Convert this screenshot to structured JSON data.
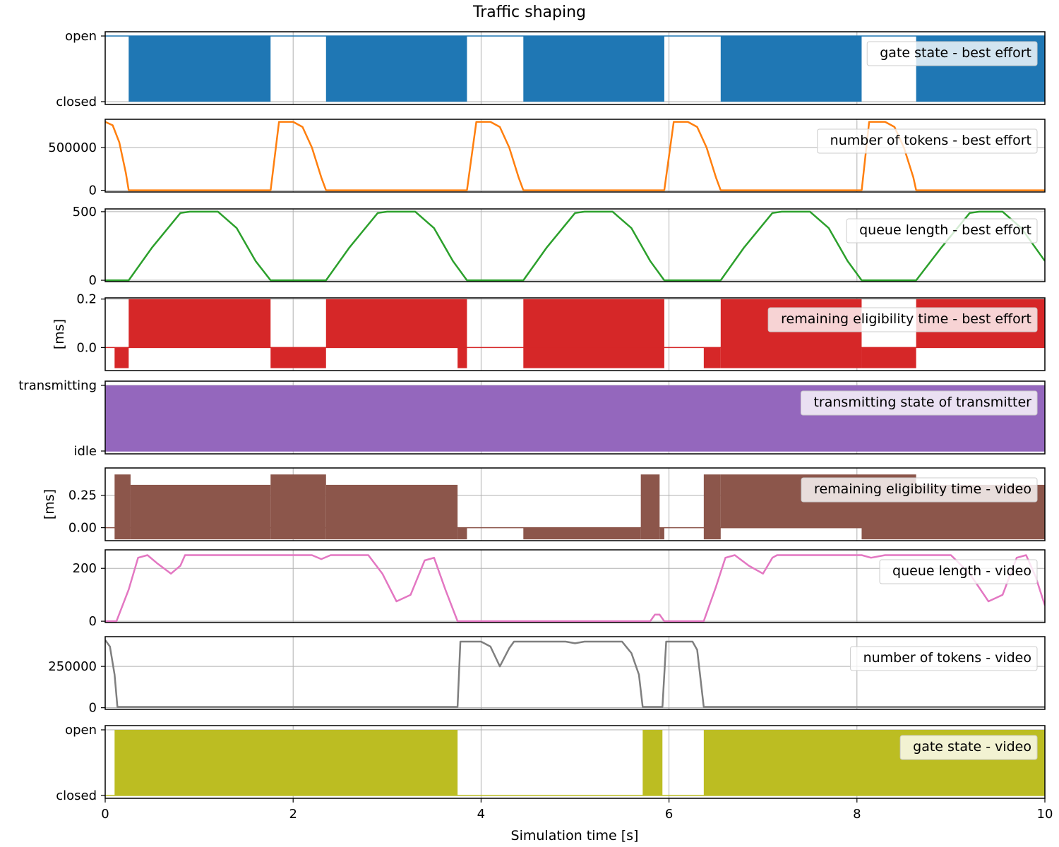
{
  "figure": {
    "title": "Traffic shaping",
    "xlabel": "Simulation time [s]"
  },
  "chart_data": {
    "type": "line",
    "xlim": [
      0,
      10
    ],
    "xticks": [
      0,
      2,
      4,
      6,
      8,
      10
    ],
    "xtick_labels": [
      "0",
      "2",
      "4",
      "6",
      "8",
      "10"
    ],
    "grid": true,
    "legend_placement": "top-right",
    "panels": [
      {
        "id": "gate-be",
        "kind": "binary-state",
        "legend": "gate state - best effort",
        "color": "#1f77b4",
        "ylabel": "",
        "ylim": [
          0,
          1
        ],
        "ytick_values": [
          0,
          1
        ],
        "ytick_labels": [
          "closed",
          "open"
        ],
        "segments": [
          [
            0.25,
            1.76
          ],
          [
            2.35,
            3.85
          ],
          [
            4.45,
            5.95
          ],
          [
            6.55,
            8.05
          ],
          [
            8.63,
            10
          ]
        ]
      },
      {
        "id": "tokens-be",
        "kind": "line",
        "legend": "number of tokens - best effort",
        "color": "#ff7f0e",
        "ylabel": "",
        "ylim": [
          -20000,
          830000
        ],
        "ytick_values": [
          0,
          500000
        ],
        "ytick_labels": [
          "0",
          "500000"
        ],
        "points": [
          [
            0,
            800000
          ],
          [
            0.08,
            760000
          ],
          [
            0.15,
            560000
          ],
          [
            0.22,
            200000
          ],
          [
            0.25,
            0
          ],
          [
            1.76,
            0
          ],
          [
            1.85,
            800000
          ],
          [
            2.0,
            800000
          ],
          [
            2.1,
            740000
          ],
          [
            2.2,
            500000
          ],
          [
            2.3,
            150000
          ],
          [
            2.35,
            0
          ],
          [
            3.85,
            0
          ],
          [
            3.95,
            800000
          ],
          [
            4.1,
            800000
          ],
          [
            4.2,
            740000
          ],
          [
            4.3,
            500000
          ],
          [
            4.4,
            150000
          ],
          [
            4.45,
            0
          ],
          [
            5.95,
            0
          ],
          [
            6.05,
            800000
          ],
          [
            6.2,
            800000
          ],
          [
            6.3,
            740000
          ],
          [
            6.4,
            500000
          ],
          [
            6.5,
            150000
          ],
          [
            6.55,
            0
          ],
          [
            8.05,
            0
          ],
          [
            8.13,
            800000
          ],
          [
            8.3,
            800000
          ],
          [
            8.4,
            740000
          ],
          [
            8.5,
            500000
          ],
          [
            8.6,
            150000
          ],
          [
            8.63,
            0
          ],
          [
            10,
            0
          ]
        ]
      },
      {
        "id": "queue-be",
        "kind": "line",
        "legend": "queue length - best effort",
        "color": "#2ca02c",
        "ylabel": "",
        "ylim": [
          -10,
          520
        ],
        "ytick_values": [
          0,
          500
        ],
        "ytick_labels": [
          "0",
          "500"
        ],
        "points": [
          [
            0,
            0
          ],
          [
            0.25,
            0
          ],
          [
            0.5,
            240
          ],
          [
            0.8,
            490
          ],
          [
            0.9,
            500
          ],
          [
            1.2,
            500
          ],
          [
            1.4,
            380
          ],
          [
            1.6,
            140
          ],
          [
            1.76,
            0
          ],
          [
            2.35,
            0
          ],
          [
            2.6,
            240
          ],
          [
            2.9,
            490
          ],
          [
            3.0,
            500
          ],
          [
            3.3,
            500
          ],
          [
            3.5,
            380
          ],
          [
            3.7,
            140
          ],
          [
            3.85,
            0
          ],
          [
            4.45,
            0
          ],
          [
            4.7,
            240
          ],
          [
            5.0,
            490
          ],
          [
            5.1,
            500
          ],
          [
            5.4,
            500
          ],
          [
            5.6,
            380
          ],
          [
            5.8,
            140
          ],
          [
            5.95,
            0
          ],
          [
            6.55,
            0
          ],
          [
            6.8,
            240
          ],
          [
            7.1,
            490
          ],
          [
            7.2,
            500
          ],
          [
            7.5,
            500
          ],
          [
            7.7,
            380
          ],
          [
            7.9,
            140
          ],
          [
            8.05,
            0
          ],
          [
            8.63,
            0
          ],
          [
            8.9,
            240
          ],
          [
            9.2,
            490
          ],
          [
            9.3,
            500
          ],
          [
            9.55,
            500
          ],
          [
            9.75,
            380
          ],
          [
            10,
            140
          ]
        ]
      },
      {
        "id": "elig-be",
        "kind": "band",
        "legend": "remaining eligibility time - best effort",
        "color": "#d62728",
        "ylabel": "[ms]",
        "ylim": [
          -0.095,
          0.205
        ],
        "ytick_values": [
          0,
          0.2
        ],
        "ytick_labels": [
          "0.0",
          "0.2"
        ],
        "baseline": 0,
        "segments": [
          [
            0.1,
            0.25,
            -0.085,
            0
          ],
          [
            0.25,
            1.76,
            0,
            0.2
          ],
          [
            1.76,
            2.35,
            -0.085,
            0
          ],
          [
            2.35,
            3.85,
            0,
            0.2
          ],
          [
            3.75,
            3.85,
            -0.085,
            0
          ],
          [
            4.45,
            5.95,
            0,
            0.2
          ],
          [
            4.45,
            5.95,
            -0.085,
            0
          ],
          [
            6.37,
            6.55,
            -0.085,
            0
          ],
          [
            6.55,
            8.05,
            -0.085,
            0.2
          ],
          [
            8.05,
            8.63,
            -0.085,
            0
          ],
          [
            8.63,
            10,
            0,
            0.2
          ]
        ]
      },
      {
        "id": "tx-state",
        "kind": "binary-state",
        "legend": "transmitting state of transmitter",
        "color": "#9467bd",
        "ylabel": "",
        "ylim": [
          0,
          1
        ],
        "ytick_values": [
          0,
          1
        ],
        "ytick_labels": [
          "idle",
          "transmitting"
        ],
        "segments": [
          [
            0,
            10
          ]
        ]
      },
      {
        "id": "elig-video",
        "kind": "band",
        "legend": "remaining eligibility time - video",
        "color": "#8c564b",
        "ylabel": "[ms]",
        "ylim": [
          -0.1,
          0.46
        ],
        "ytick_values": [
          0,
          0.25
        ],
        "ytick_labels": [
          "0.00",
          "0.25"
        ],
        "baseline": 0,
        "segments": [
          [
            0.1,
            0.27,
            -0.09,
            0.41
          ],
          [
            0.27,
            1.76,
            -0.09,
            0.33
          ],
          [
            1.76,
            2.35,
            -0.09,
            0.41
          ],
          [
            2.35,
            3.75,
            -0.09,
            0.33
          ],
          [
            3.75,
            3.85,
            -0.09,
            0
          ],
          [
            4.45,
            5.7,
            -0.09,
            0
          ],
          [
            5.7,
            5.9,
            -0.09,
            0.41
          ],
          [
            5.9,
            5.95,
            -0.09,
            0
          ],
          [
            6.37,
            6.55,
            -0.09,
            0.41
          ],
          [
            6.55,
            8.63,
            0,
            0.41
          ],
          [
            8.05,
            10,
            -0.09,
            0.33
          ]
        ]
      },
      {
        "id": "queue-video",
        "kind": "line",
        "legend": "queue length - video",
        "color": "#e377c2",
        "ylabel": "",
        "ylim": [
          -5,
          270
        ],
        "ytick_values": [
          0,
          200
        ],
        "ytick_labels": [
          "0",
          "200"
        ],
        "points": [
          [
            0,
            0
          ],
          [
            0.12,
            0
          ],
          [
            0.25,
            120
          ],
          [
            0.35,
            240
          ],
          [
            0.45,
            250
          ],
          [
            0.55,
            220
          ],
          [
            0.7,
            180
          ],
          [
            0.8,
            210
          ],
          [
            0.85,
            250
          ],
          [
            2.2,
            250
          ],
          [
            2.3,
            235
          ],
          [
            2.4,
            250
          ],
          [
            2.8,
            250
          ],
          [
            2.95,
            180
          ],
          [
            3.1,
            75
          ],
          [
            3.25,
            100
          ],
          [
            3.4,
            230
          ],
          [
            3.5,
            240
          ],
          [
            3.62,
            120
          ],
          [
            3.75,
            0
          ],
          [
            5.8,
            0
          ],
          [
            5.85,
            25
          ],
          [
            5.9,
            25
          ],
          [
            5.95,
            0
          ],
          [
            6.37,
            0
          ],
          [
            6.5,
            130
          ],
          [
            6.6,
            240
          ],
          [
            6.7,
            250
          ],
          [
            6.85,
            210
          ],
          [
            7.0,
            180
          ],
          [
            7.1,
            240
          ],
          [
            7.15,
            250
          ],
          [
            8.05,
            250
          ],
          [
            8.15,
            240
          ],
          [
            8.3,
            250
          ],
          [
            9.0,
            250
          ],
          [
            9.2,
            180
          ],
          [
            9.4,
            75
          ],
          [
            9.55,
            100
          ],
          [
            9.7,
            240
          ],
          [
            9.8,
            250
          ],
          [
            9.9,
            170
          ],
          [
            10,
            60
          ]
        ]
      },
      {
        "id": "tokens-video",
        "kind": "line",
        "legend": "number of tokens - video",
        "color": "#7f7f7f",
        "ylabel": "",
        "ylim": [
          -10000,
          430000
        ],
        "ytick_values": [
          0,
          250000
        ],
        "ytick_labels": [
          "0",
          "250000"
        ],
        "points": [
          [
            0,
            410000
          ],
          [
            0.05,
            370000
          ],
          [
            0.1,
            200000
          ],
          [
            0.13,
            5000
          ],
          [
            3.75,
            5000
          ],
          [
            3.78,
            400000
          ],
          [
            4.0,
            400000
          ],
          [
            4.1,
            370000
          ],
          [
            4.2,
            250000
          ],
          [
            4.3,
            360000
          ],
          [
            4.35,
            400000
          ],
          [
            4.9,
            400000
          ],
          [
            5.0,
            390000
          ],
          [
            5.1,
            400000
          ],
          [
            5.5,
            400000
          ],
          [
            5.6,
            330000
          ],
          [
            5.68,
            200000
          ],
          [
            5.72,
            5000
          ],
          [
            5.93,
            5000
          ],
          [
            5.97,
            400000
          ],
          [
            6.25,
            400000
          ],
          [
            6.3,
            350000
          ],
          [
            6.37,
            5000
          ],
          [
            10,
            5000
          ]
        ]
      },
      {
        "id": "gate-video",
        "kind": "binary-state",
        "legend": "gate state - video",
        "color": "#bcbd22",
        "ylabel": "",
        "ylim": [
          0,
          1
        ],
        "ytick_values": [
          0,
          1
        ],
        "ytick_labels": [
          "closed",
          "open"
        ],
        "segments": [
          [
            0.1,
            3.75
          ],
          [
            5.72,
            5.93
          ],
          [
            6.37,
            10
          ]
        ]
      }
    ]
  }
}
